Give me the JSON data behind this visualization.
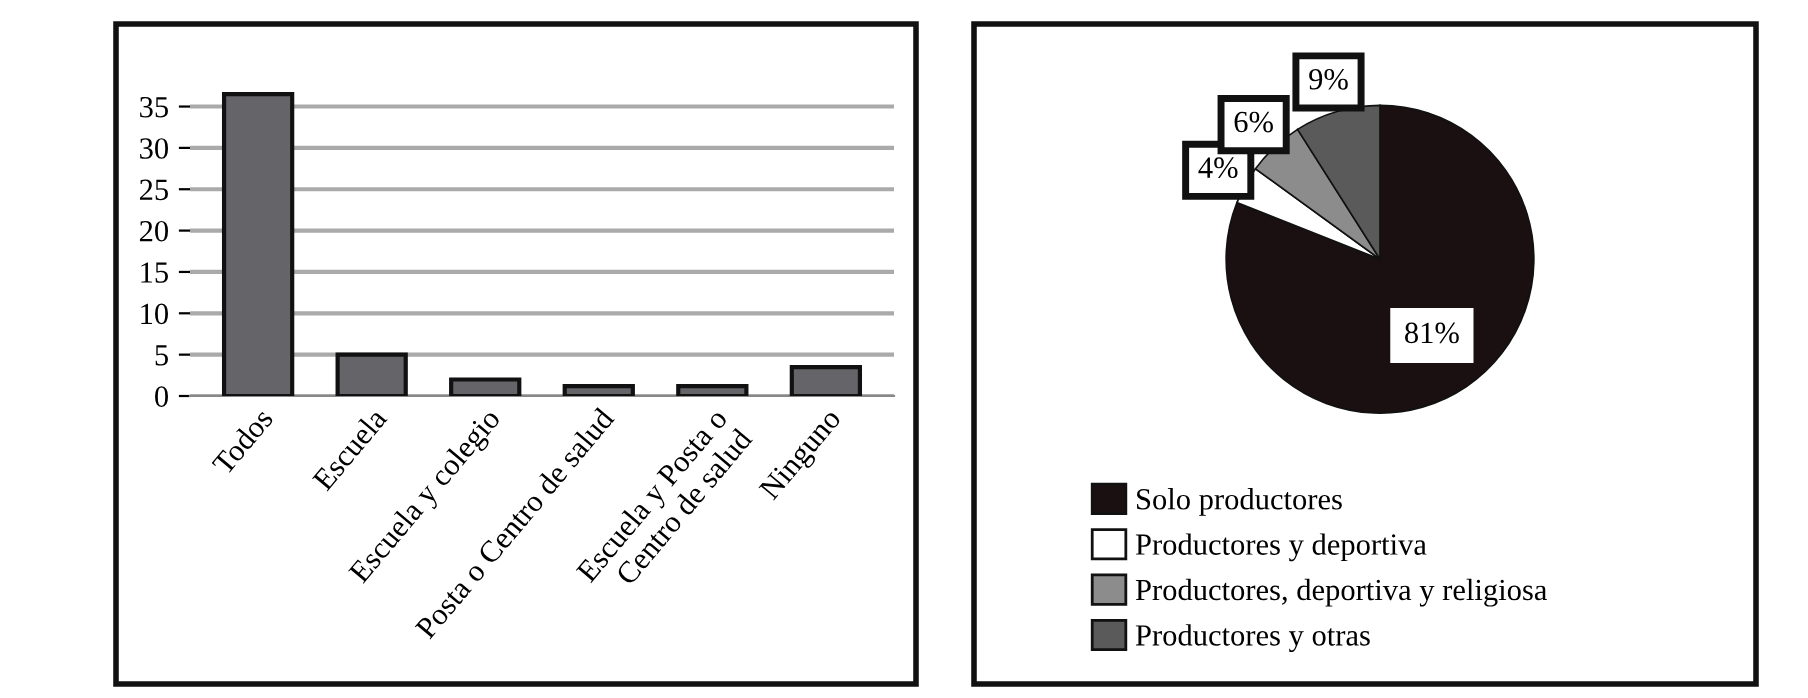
{
  "chart_data": [
    {
      "type": "bar",
      "categories": [
        "Todos",
        "Escuela",
        "Escuela y colegio",
        "Posta o Centro de salud",
        "Escuela y Posta o\nCentro de salud",
        "Ninguno"
      ],
      "values": [
        36.5,
        5,
        2,
        1.2,
        1.2,
        3.5
      ],
      "color": "#646469",
      "ylim": [
        0,
        37
      ],
      "yticks": [
        0,
        5,
        10,
        15,
        20,
        25,
        30,
        35
      ],
      "grid": "y"
    },
    {
      "type": "pie",
      "categories": [
        "Solo productores",
        "Productores y deportiva",
        "Productores, deportiva y religiosa",
        "Productores y otras"
      ],
      "values": [
        81,
        4,
        6,
        9
      ],
      "colors": [
        "#1a1011",
        "#ffffff",
        "#8c8c8c",
        "#5a5a5a"
      ],
      "value_labels": [
        "81%",
        "4%",
        "6%",
        "9%"
      ],
      "legend": "bottom left"
    }
  ]
}
